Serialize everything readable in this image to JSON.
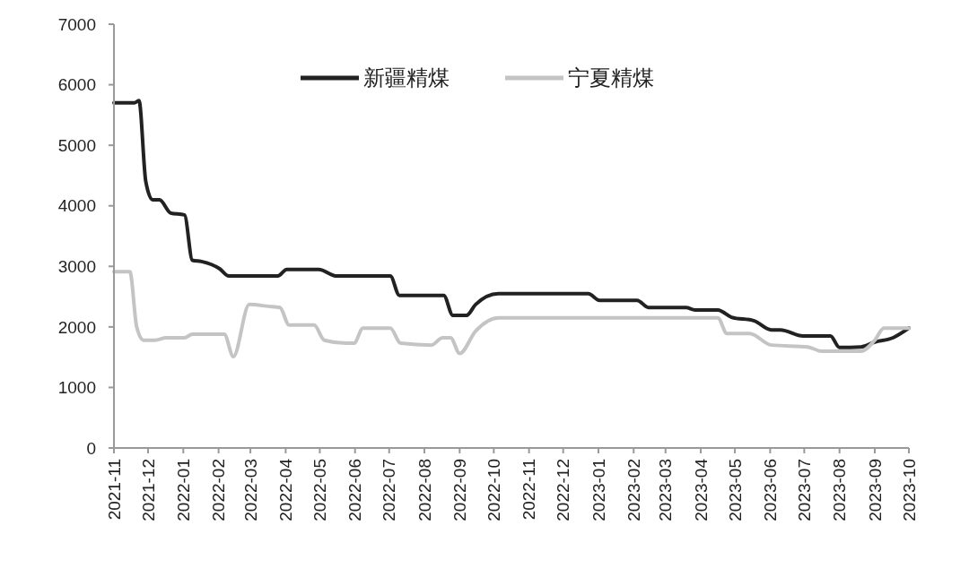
{
  "chart_data": {
    "type": "line",
    "xlim": [
      "2021-11",
      "2023-10"
    ],
    "xticks": [
      {
        "value": "2021-11",
        "label": "2021-11"
      },
      {
        "value": "2021-12",
        "label": "2021-12"
      },
      {
        "value": "2022-01",
        "label": "2022-01"
      },
      {
        "value": "2022-02",
        "label": "2022-02"
      },
      {
        "value": "2022-03",
        "label": "2022-03"
      },
      {
        "value": "2022-04",
        "label": "2022-04"
      },
      {
        "value": "2022-05",
        "label": "2022-05"
      },
      {
        "value": "2022-06",
        "label": "2022-06"
      },
      {
        "value": "2022-07",
        "label": "2022-07"
      },
      {
        "value": "2022-08",
        "label": "2022-08"
      },
      {
        "value": "2022-09",
        "label": "2022-09"
      },
      {
        "value": "2022-10",
        "label": "2022-10"
      },
      {
        "value": "2022-11",
        "label": "2022-11"
      },
      {
        "value": "2022-12",
        "label": "2022-12"
      },
      {
        "value": "2023-01",
        "label": "2023-01"
      },
      {
        "value": "2023-02",
        "label": "2023-02"
      },
      {
        "value": "2023-03",
        "label": "2023-03"
      },
      {
        "value": "2023-04",
        "label": "2023-04"
      },
      {
        "value": "2023-05",
        "label": "2023-05"
      },
      {
        "value": "2023-06",
        "label": "2023-06"
      },
      {
        "value": "2023-07",
        "label": "2023-07"
      },
      {
        "value": "2023-08",
        "label": "2023-08"
      },
      {
        "value": "2023-09",
        "label": "2023-09"
      },
      {
        "value": "2023-10",
        "label": "2023-10"
      }
    ],
    "ylim": [
      0,
      7000
    ],
    "yticks": [
      0,
      1000,
      2000,
      3000,
      4000,
      5000,
      6000,
      7000
    ],
    "grid": false,
    "legend": "top",
    "line_style": "solid",
    "series": [
      {
        "name": "新疆精煤",
        "color": "#222222",
        "x": [
          "2021-11-01",
          "2021-11-19",
          "2021-11-23",
          "2021-11-29",
          "2021-12-05",
          "2021-12-11",
          "2021-12-21",
          "2022-01-02",
          "2022-01-09",
          "2022-01-17",
          "2022-02-02",
          "2022-02-10",
          "2022-03-25",
          "2022-04-02",
          "2022-04-30",
          "2022-05-16",
          "2022-07-02",
          "2022-07-10",
          "2022-08-18",
          "2022-08-26",
          "2022-09-07",
          "2022-09-15",
          "2022-10-05",
          "2022-12-23",
          "2023-01-02",
          "2023-02-04",
          "2023-02-14",
          "2023-03-19",
          "2023-03-27",
          "2023-04-16",
          "2023-04-28",
          "2023-05-18",
          "2023-06-02",
          "2023-06-10",
          "2023-06-30",
          "2023-07-24",
          "2023-08-01",
          "2023-08-20",
          "2023-09-01",
          "2023-09-17",
          "2023-10-01"
        ],
        "values": [
          5700,
          5700,
          5740,
          4400,
          4100,
          4100,
          3880,
          3850,
          3100,
          3080,
          2960,
          2840,
          2840,
          2950,
          2950,
          2840,
          2840,
          2520,
          2520,
          2190,
          2190,
          2370,
          2550,
          2550,
          2440,
          2440,
          2320,
          2320,
          2280,
          2280,
          2160,
          2100,
          1950,
          1950,
          1850,
          1850,
          1660,
          1670,
          1750,
          1820,
          1980
        ]
      },
      {
        "name": "宁夏精煤",
        "color": "#c4c4c4",
        "x": [
          "2021-11-01",
          "2021-11-15",
          "2021-11-21",
          "2021-11-27",
          "2021-12-07",
          "2021-12-17",
          "2022-01-02",
          "2022-01-09",
          "2022-02-06",
          "2022-02-14",
          "2022-02-28",
          "2022-03-17",
          "2022-03-27",
          "2022-04-04",
          "2022-04-26",
          "2022-05-05",
          "2022-05-24",
          "2022-05-31",
          "2022-06-08",
          "2022-07-02",
          "2022-07-11",
          "2022-08-07",
          "2022-08-17",
          "2022-08-24",
          "2022-09-01",
          "2022-09-15",
          "2022-10-05",
          "2023-04-16",
          "2023-04-24",
          "2023-05-14",
          "2023-06-02",
          "2023-07-04",
          "2023-07-16",
          "2023-08-20",
          "2023-09-01",
          "2023-09-09",
          "2023-10-01"
        ],
        "values": [
          2910,
          2910,
          2000,
          1780,
          1780,
          1820,
          1820,
          1880,
          1880,
          1510,
          2370,
          2340,
          2320,
          2030,
          2030,
          1780,
          1730,
          1730,
          1980,
          1980,
          1730,
          1700,
          1820,
          1820,
          1560,
          1930,
          2150,
          2150,
          1890,
          1890,
          1700,
          1670,
          1600,
          1600,
          1780,
          1980,
          1980
        ]
      }
    ]
  }
}
